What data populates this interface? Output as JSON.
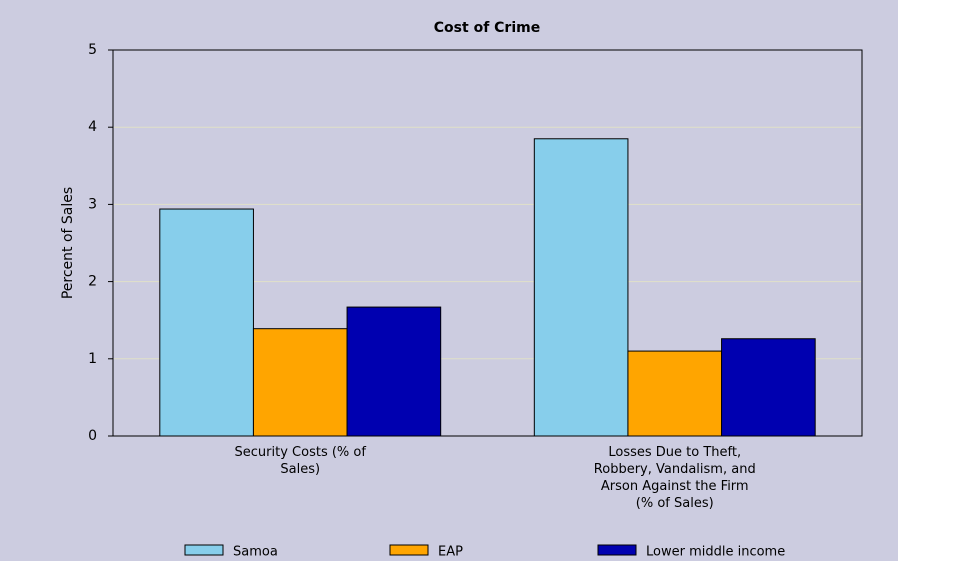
{
  "chart_data": {
    "type": "bar",
    "title": "Cost of Crime",
    "y_label": "Percent of Sales",
    "categories": [
      "Security Costs (% of Sales)",
      "Losses Due to Theft, Robbery, Vandalism, and Arson Against the Firm (% of Sales)"
    ],
    "series": [
      {
        "name": "Samoa",
        "color": "#87ceeb",
        "values": [
          2.94,
          3.85
        ]
      },
      {
        "name": "EAP",
        "color": "#ffa500",
        "values": [
          1.39,
          1.1
        ]
      },
      {
        "name": "Lower middle income",
        "color": "#0000b0",
        "values": [
          1.67,
          1.26
        ]
      }
    ],
    "ylim": [
      0,
      5
    ],
    "yticks": [
      0,
      1,
      2,
      3,
      4,
      5
    ],
    "grid": true,
    "legend": "bottom"
  }
}
